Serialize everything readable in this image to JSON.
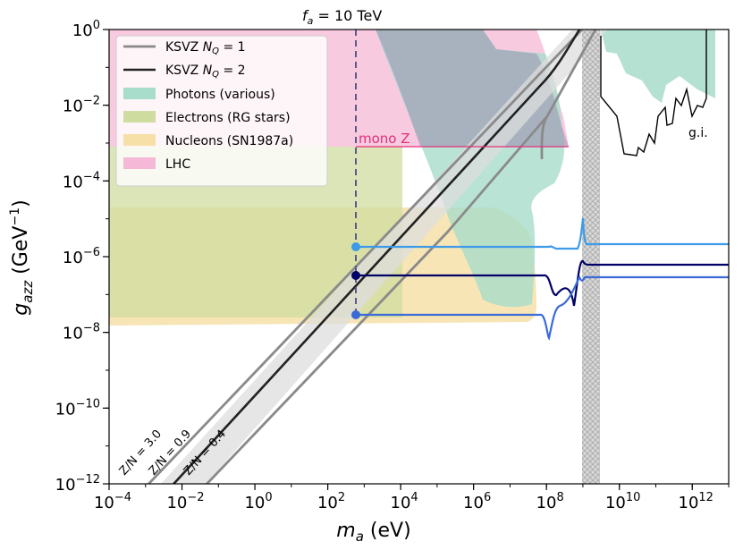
{
  "chart_data": {
    "type": "line",
    "title": "f_a = 10 TeV",
    "xlabel": "m_a (eV)",
    "ylabel": "g_azz (GeV^-1)",
    "x_scale": "log",
    "y_scale": "log",
    "xlim_log10": [
      -4,
      13
    ],
    "ylim_log10": [
      -12,
      0
    ],
    "x_tick_exponents": [
      -4,
      -2,
      0,
      2,
      4,
      6,
      8,
      10,
      12
    ],
    "y_tick_exponents": [
      -12,
      -10,
      -8,
      -6,
      -4,
      -2,
      0
    ],
    "x_tick_labels": [
      "10^-4",
      "10^-2",
      "10^0",
      "10^2",
      "10^4",
      "10^6",
      "10^8",
      "10^10",
      "10^12"
    ],
    "y_tick_labels": [
      "10^-12",
      "10^-10",
      "10^-8",
      "10^-6",
      "10^-4",
      "10^-2",
      "10^0"
    ],
    "legend": {
      "position": "top-left",
      "entries": [
        {
          "label": "KSVZ N_Q = 1",
          "kind": "line",
          "color": "#888888"
        },
        {
          "label": "KSVZ N_Q = 2",
          "kind": "line",
          "color": "#222222"
        },
        {
          "label": "Photons (various)",
          "kind": "patch",
          "color": "#a8dccb"
        },
        {
          "label": "Electrons (RG stars)",
          "kind": "patch",
          "color": "#cfdca0"
        },
        {
          "label": "Nucleons (SN1987a)",
          "kind": "patch",
          "color": "#f6e0a8"
        },
        {
          "label": "LHC",
          "kind": "patch",
          "color": "#f5b8d6"
        }
      ]
    },
    "regions": [
      {
        "name": "Nucleons (SN1987a)",
        "color": "#f6e0a8",
        "x_log10": [
          -4,
          4
        ],
        "y_log10": [
          -7.8,
          -4.7
        ],
        "note": "extends beyond x=10^4 with a curved upper edge reaching x~10^7.3"
      },
      {
        "name": "Electrons (RG stars)",
        "color": "#cfdca0",
        "x_log10": [
          -4,
          4
        ],
        "y_log10": [
          -7.6,
          -3.1
        ]
      },
      {
        "name": "LHC",
        "color": "#f5b8d6",
        "x_log10": [
          -4,
          8.4
        ],
        "y_log10": [
          -3.0,
          0
        ]
      },
      {
        "name": "Photons (various)",
        "color": "#a8dccb",
        "description": "diagonal band from upper-left (~10^3.5) down to ~10^7.5 at g~10^-7.6, then up to 10^9"
      },
      {
        "name": "g.i.",
        "color": "#a8dccb",
        "description": "region above jagged black curve at x ~ 10^9.9 to 10^12.6"
      }
    ],
    "lines": [
      {
        "name": "KSVZ N_Q=2 (Z/N=0.9)",
        "color": "#222222",
        "description": "diagonal slope 1 in log-log, g=10^-6.5 at m=10^2.8"
      },
      {
        "name": "KSVZ N_Q=1 band edges (Z/N=3.0, Z/N=0.4)",
        "color": "#888888"
      },
      {
        "name": "f_a = 10 TeV vertical line",
        "color": "#5a5a8a",
        "x_log10": 2.8
      },
      {
        "name": "mono Z",
        "color": "#e0307a",
        "x_log10_start": 2.8,
        "y_log10": -3.05
      },
      {
        "name": "g_azz dots (upper/middle/lower)",
        "colors": [
          "#3e9ae8",
          "#000066",
          "#3a6ad8"
        ],
        "x_log10": 2.8,
        "y_log10": [
          -5.77,
          -6.55,
          -7.45
        ]
      }
    ],
    "annotations": [
      {
        "text": "mono Z",
        "color": "#e0307a"
      },
      {
        "text": "g.i.",
        "color": "#000000"
      },
      {
        "text": "Z/N = 3.0"
      },
      {
        "text": "Z/N = 0.9"
      },
      {
        "text": "Z/N = 0.4"
      }
    ]
  },
  "labels": {
    "title": "f_a = 10 TeV",
    "title_f": "f",
    "title_a": "a",
    "title_rest": " = 10 TeV",
    "xlabel_m": "m",
    "xlabel_a": "a",
    "xlabel_rest": " (eV)",
    "ylabel_g": "g",
    "ylabel_sub": "azz",
    "ylabel_unit": " (GeV",
    "ylabel_exp": "−1",
    "ylabel_close": ")",
    "tick_base": "10",
    "x_exponents": [
      "−4",
      "−2",
      "0",
      "2",
      "4",
      "6",
      "8",
      "10",
      "12"
    ],
    "y_exponents": [
      "−12",
      "−10",
      "−8",
      "−6",
      "−4",
      "−2",
      "0"
    ],
    "mono_z": "mono Z",
    "gi": "g.i.",
    "zn_30": "Z/N = 3.0",
    "zn_09": "Z/N = 0.9",
    "zn_04": "Z/N = 0.4",
    "legend_ksvz1_base": "KSVZ ",
    "legend_ksvz1_nq": "N",
    "legend_ksvz1_sub": "Q",
    "legend_ksvz1_rest": " = 1",
    "legend_ksvz2_base": "KSVZ ",
    "legend_ksvz2_nq": "N",
    "legend_ksvz2_sub": "Q",
    "legend_ksvz2_rest": " = 2",
    "legend_photons": "Photons (various)",
    "legend_electrons": "Electrons (RG stars)",
    "legend_nucleons": "Nucleons (SN1987a)",
    "legend_lhc": "LHC"
  }
}
